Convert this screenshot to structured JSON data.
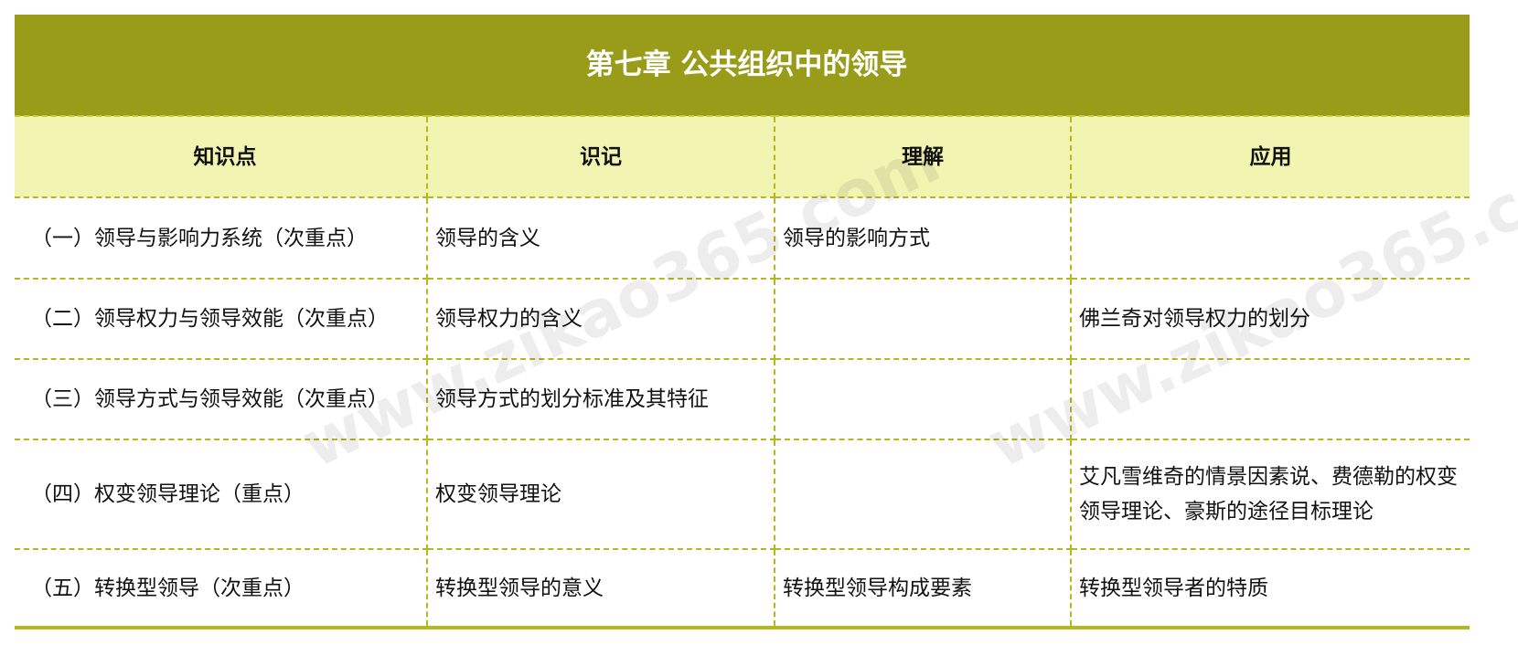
{
  "title": "第七章 公共组织中的领导",
  "headers": [
    "知识点",
    "识记",
    "理解",
    "应用"
  ],
  "rows": [
    [
      "（一）领导与影响力系统（次重点）",
      "领导的含义",
      "领导的影响方式",
      ""
    ],
    [
      "（二）领导权力与领导效能（次重点）",
      "领导权力的含义",
      "",
      "佛兰奇对领导权力的划分"
    ],
    [
      "（三）领导方式与领导效能（次重点）",
      "领导方式的划分标准及其特征",
      "",
      ""
    ],
    [
      "（四）权变领导理论（重点）",
      "权变领导理论",
      "",
      "艾凡雪维奇的情景因素说、费德勒的权变领导理论、豪斯的途径目标理论"
    ],
    [
      "（五）转换型领导（次重点）",
      "转换型领导的意义",
      "转换型领导构成要素",
      "转换型领导者的特质"
    ]
  ],
  "watermark": "www.zikao365.com"
}
